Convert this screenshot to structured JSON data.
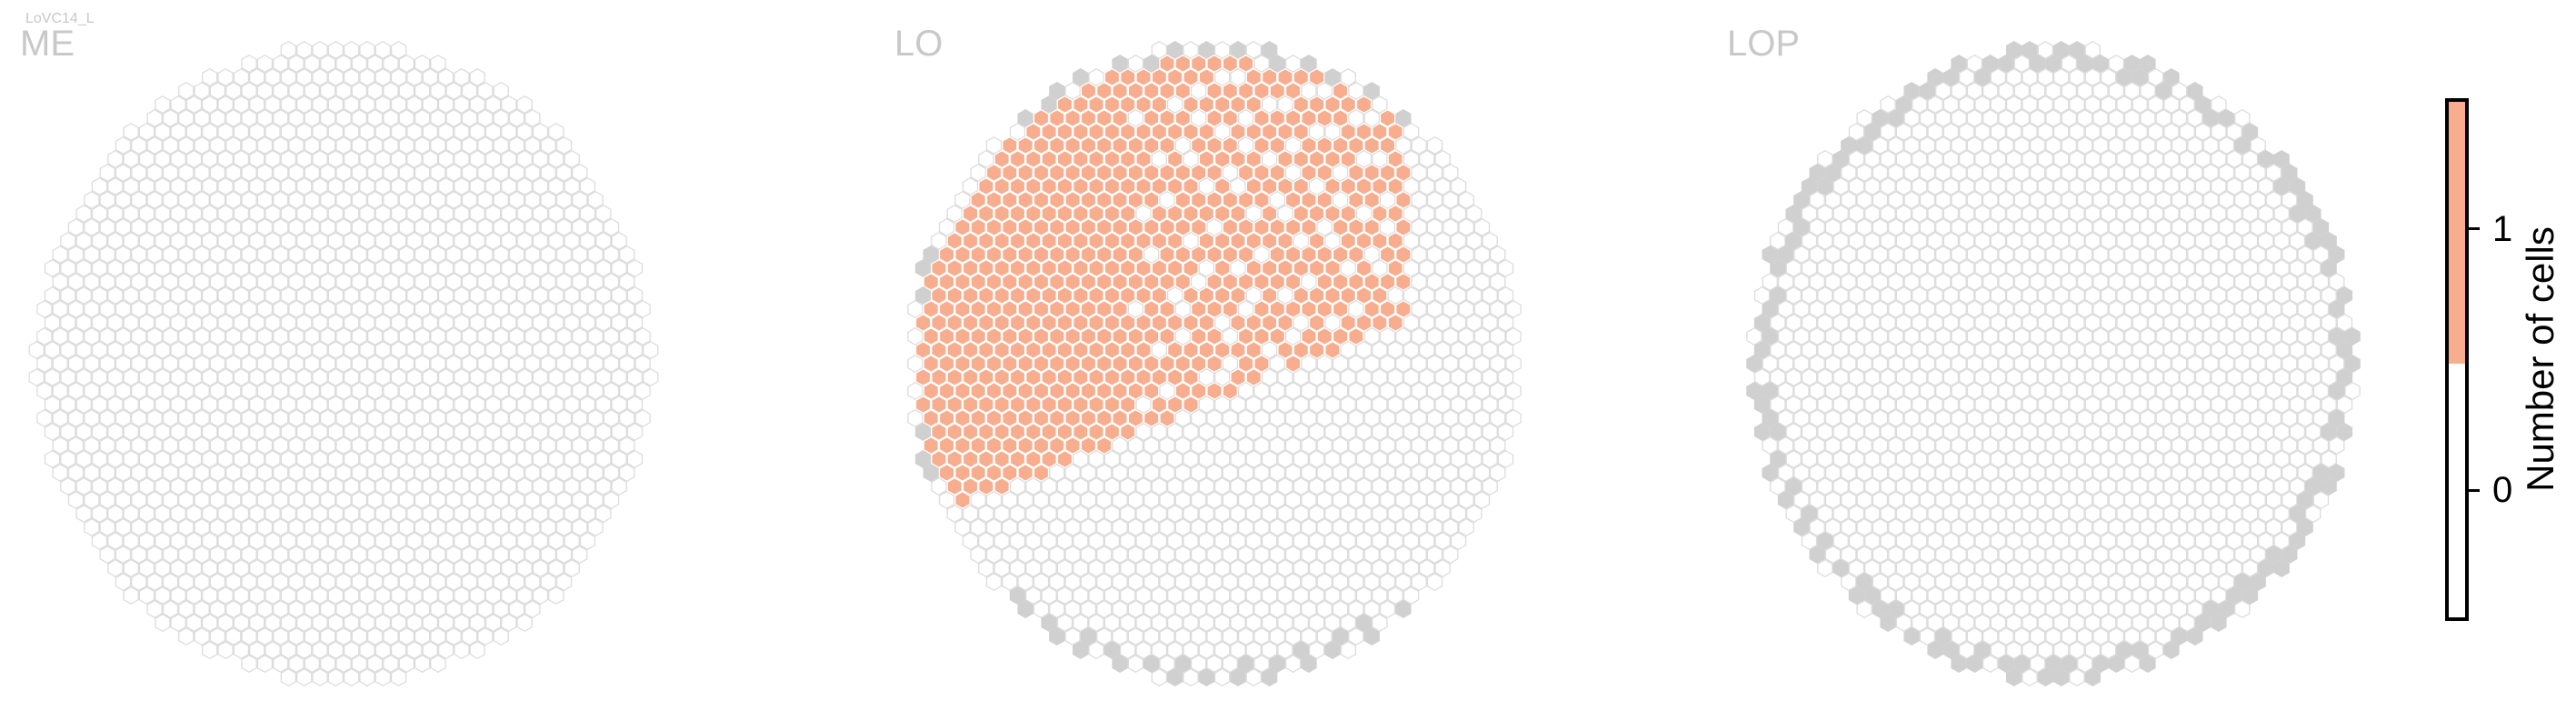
{
  "chart_data": {
    "type": "heatmap",
    "neuron_label": "LoVC14_L",
    "colors": {
      "empty": "#ffffff",
      "empty_stroke": "#dcdcdc",
      "boundary": "#d0d0d0",
      "filled": "#f7ad8e",
      "filled_stroke": "#ffffff"
    },
    "panels": [
      {
        "name": "ME",
        "layer_id": "me",
        "description": "hexagonal column grid, all columns 0",
        "max_value": 0,
        "boundary_columns": "none"
      },
      {
        "name": "LO",
        "layer_id": "lo",
        "description": "upper-left region of columns with 1 cell",
        "max_value": 1,
        "boundary_columns": "bottom edge and left edge"
      },
      {
        "name": "LOP",
        "layer_id": "lop",
        "description": "all columns 0, rim columns grey",
        "max_value": 0,
        "boundary_columns": "rim"
      }
    ],
    "colorbar": {
      "label": "Number of cells",
      "ticks": [
        {
          "value": 1,
          "label": "1"
        },
        {
          "value": 0,
          "label": "0"
        }
      ],
      "range": [
        -0.5,
        1.5
      ],
      "segments": [
        {
          "from": 0.5,
          "to": 1.5,
          "color": "#f7ad8e"
        },
        {
          "from": -0.5,
          "to": 0.5,
          "color": "#ffffff"
        }
      ]
    }
  }
}
